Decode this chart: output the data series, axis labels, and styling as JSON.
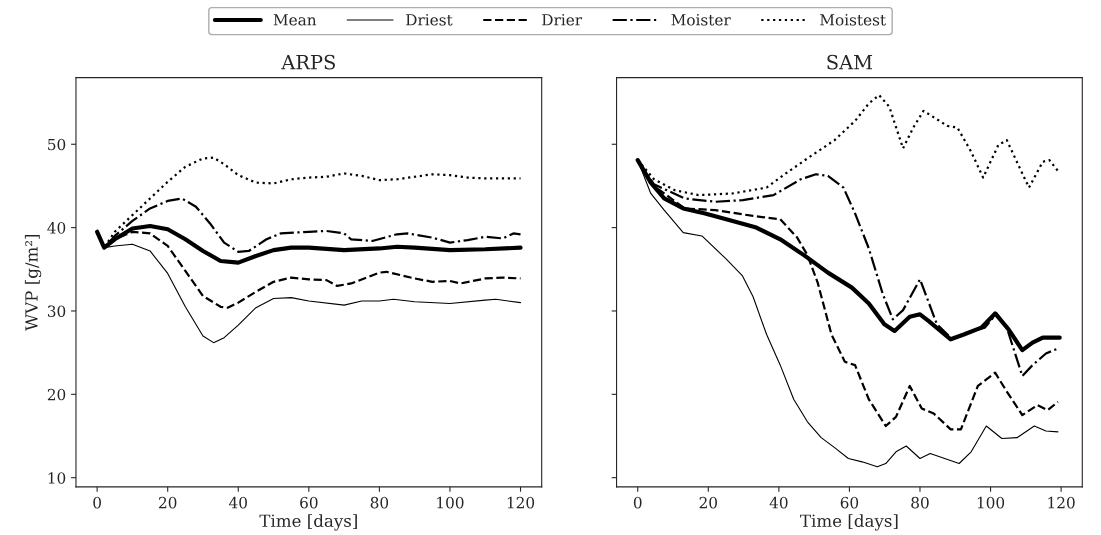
{
  "chart_data": [
    {
      "type": "line",
      "title": "ARPS",
      "xlabel": "Time [days]",
      "ylabel": "WVP [g/m²]",
      "xlim": [
        -6,
        126
      ],
      "ylim": [
        8.9,
        58
      ],
      "xticks": [
        0,
        20,
        40,
        60,
        80,
        100,
        120
      ],
      "yticks": [
        10,
        20,
        30,
        40,
        50
      ],
      "grid": false,
      "legend": "top",
      "marker": "none",
      "series": [
        {
          "name": "Mean",
          "color": "#000000",
          "line_style": "solid",
          "x": [
            0,
            2,
            5,
            10,
            15,
            20,
            25,
            30,
            35,
            40,
            45,
            50,
            55,
            60,
            70,
            80,
            85,
            90,
            100,
            110,
            120
          ],
          "values": [
            39.5,
            37.6,
            38.6,
            39.9,
            40.2,
            39.8,
            38.6,
            37.2,
            36.0,
            35.8,
            36.6,
            37.3,
            37.6,
            37.6,
            37.3,
            37.5,
            37.7,
            37.6,
            37.3,
            37.4,
            37.6
          ]
        },
        {
          "name": "Driest",
          "color": "#000000",
          "line_style": "solid",
          "x": [
            0,
            2,
            5,
            10,
            15,
            20,
            25,
            30,
            33,
            36,
            40,
            45,
            50,
            55,
            60,
            70,
            75,
            80,
            84,
            90,
            100,
            110,
            113,
            120
          ],
          "values": [
            39.4,
            37.6,
            37.8,
            38.0,
            37.2,
            34.5,
            30.5,
            27.0,
            26.2,
            26.8,
            28.3,
            30.4,
            31.5,
            31.6,
            31.2,
            30.7,
            31.2,
            31.2,
            31.4,
            31.1,
            30.9,
            31.3,
            31.4,
            31.0
          ]
        },
        {
          "name": "Drier",
          "color": "#000000",
          "line_style": "dashed",
          "x": [
            0,
            2,
            5,
            10,
            15,
            20,
            25,
            30,
            35,
            37,
            40,
            45,
            50,
            55,
            60,
            65,
            68,
            72,
            80,
            82,
            90,
            95,
            100,
            103,
            110,
            115,
            120
          ],
          "values": [
            39.4,
            37.6,
            38.6,
            39.5,
            39.3,
            37.8,
            34.8,
            31.8,
            30.5,
            30.4,
            31.0,
            32.3,
            33.5,
            34.0,
            33.8,
            33.7,
            33.0,
            33.3,
            34.6,
            34.7,
            33.9,
            33.5,
            33.6,
            33.3,
            33.9,
            34.0,
            33.9
          ]
        },
        {
          "name": "Moister",
          "color": "#000000",
          "line_style": "dashdot",
          "x": [
            0,
            2,
            5,
            10,
            15,
            20,
            24,
            28,
            32,
            36,
            40,
            43,
            48,
            52,
            60,
            65,
            70,
            72,
            78,
            85,
            88,
            95,
            100,
            105,
            110,
            115,
            118,
            120
          ],
          "values": [
            39.4,
            37.6,
            39.0,
            40.8,
            42.3,
            43.2,
            43.5,
            42.5,
            40.5,
            38.2,
            37.1,
            37.2,
            38.6,
            39.3,
            39.5,
            39.6,
            39.3,
            38.6,
            38.4,
            39.2,
            39.3,
            38.8,
            38.2,
            38.5,
            38.9,
            38.7,
            39.3,
            39.2
          ]
        },
        {
          "name": "Moistest",
          "color": "#000000",
          "line_style": "dotted",
          "x": [
            0,
            2,
            5,
            10,
            15,
            20,
            25,
            30,
            33,
            36,
            40,
            45,
            50,
            55,
            60,
            65,
            70,
            75,
            80,
            85,
            90,
            95,
            100,
            105,
            110,
            115,
            120
          ],
          "values": [
            39.4,
            37.6,
            39.5,
            41.5,
            43.5,
            45.5,
            47.3,
            48.3,
            48.4,
            47.6,
            46.3,
            45.4,
            45.3,
            45.8,
            46.0,
            46.1,
            46.5,
            46.2,
            45.7,
            45.8,
            46.1,
            46.4,
            46.3,
            46.0,
            45.9,
            45.9,
            45.9
          ]
        }
      ]
    },
    {
      "type": "line",
      "title": "SAM",
      "xlabel": "Time [days]",
      "xlim": [
        -6,
        126
      ],
      "ylim": [
        8.9,
        58
      ],
      "xticks": [
        0,
        20,
        40,
        60,
        80,
        100,
        120
      ],
      "yticks": [
        10,
        20,
        30,
        40,
        50
      ],
      "tick_labels": "x",
      "grid": false,
      "marker": "none",
      "series": [
        {
          "name": "Mean",
          "color": "#000000",
          "line_style": "solid",
          "x": [
            0,
            3.7,
            7.5,
            12.9,
            19.1,
            26.9,
            33.6,
            40.4,
            47.1,
            53.9,
            60.7,
            65.5,
            69.9,
            72.8,
            77.1,
            80,
            82.4,
            88.7,
            92.6,
            97.4,
            101.3,
            105.1,
            109,
            111.9,
            114.8,
            119.6
          ],
          "values": [
            48.1,
            45.4,
            43.5,
            42.3,
            41.7,
            40.8,
            40.0,
            38.6,
            36.7,
            34.6,
            32.8,
            30.9,
            28.4,
            27.6,
            29.3,
            29.6,
            28.8,
            26.6,
            27.2,
            28.0,
            29.7,
            27.8,
            25.3,
            26.2,
            26.8,
            26.8
          ]
        },
        {
          "name": "Driest",
          "color": "#000000",
          "line_style": "solid",
          "x": [
            0,
            3.7,
            7.5,
            12.9,
            18.2,
            24.9,
            29.7,
            32.7,
            36.5,
            40.4,
            44.2,
            48.1,
            52,
            55.8,
            59.7,
            63.6,
            67.9,
            70.3,
            73.2,
            76.1,
            80,
            82.9,
            91.1,
            94.5,
            98.8,
            103.2,
            107.5,
            112.4,
            115.7,
            119.1
          ],
          "values": [
            48.1,
            44.1,
            42.1,
            39.4,
            39.0,
            36.3,
            34.2,
            31.7,
            27.2,
            23.5,
            19.4,
            16.7,
            14.8,
            13.6,
            12.3,
            11.9,
            11.3,
            11.7,
            13.1,
            13.8,
            12.3,
            12.9,
            11.7,
            13.1,
            16.2,
            14.7,
            14.8,
            16.2,
            15.6,
            15.5
          ]
        },
        {
          "name": "Drier",
          "color": "#000000",
          "line_style": "dashed",
          "x": [
            0,
            4.6,
            13.3,
            22,
            32.7,
            40.4,
            45.2,
            48.1,
            51,
            54.9,
            58.7,
            61.6,
            65.5,
            70.3,
            73.2,
            77.1,
            80.5,
            83.9,
            88.7,
            91.6,
            96.4,
            101.3,
            104.2,
            109,
            113.3,
            116.2,
            119.1
          ],
          "values": [
            48.1,
            45.0,
            42.3,
            42.1,
            41.4,
            41.0,
            38.8,
            36.7,
            33.4,
            27.2,
            23.9,
            23.5,
            19.4,
            16.2,
            17.3,
            21.0,
            18.3,
            17.7,
            15.8,
            15.8,
            21.0,
            22.6,
            20.6,
            17.5,
            18.7,
            18.1,
            19.1
          ]
        },
        {
          "name": "Moister",
          "color": "#000000",
          "line_style": "dashdot",
          "x": [
            0,
            4.6,
            13.3,
            22,
            29.8,
            38.5,
            46.2,
            50.5,
            53.9,
            58.3,
            61.6,
            65.5,
            69.4,
            72.3,
            75.2,
            80,
            84.8,
            89.2,
            94.5,
            98.4,
            101.7,
            104.6,
            109,
            111.9,
            115.7,
            119.1
          ],
          "values": [
            48.1,
            45.2,
            43.5,
            43.1,
            43.3,
            43.9,
            45.8,
            46.4,
            46.2,
            44.8,
            41.7,
            37.5,
            32.1,
            29.0,
            30.1,
            33.8,
            28.4,
            26.6,
            27.6,
            28.0,
            29.7,
            28.0,
            22.2,
            23.5,
            24.9,
            25.5
          ]
        },
        {
          "name": "Moistest",
          "color": "#000000",
          "line_style": "dotted",
          "x": [
            0,
            4.6,
            10.4,
            17.2,
            26.9,
            36.5,
            42.3,
            48.1,
            55.8,
            61.6,
            65.5,
            68.4,
            71.3,
            75.2,
            78.1,
            81,
            84.8,
            87.7,
            90.6,
            94.5,
            97.9,
            102.2,
            104.6,
            108,
            110.9,
            114.8,
            116.7,
            119.1
          ],
          "values": [
            48.1,
            45.8,
            44.5,
            43.9,
            44.1,
            44.8,
            46.6,
            48.3,
            50.5,
            52.8,
            54.9,
            55.9,
            54.5,
            49.5,
            52.0,
            54.0,
            53.0,
            52.2,
            52.0,
            49.1,
            46.0,
            49.9,
            50.5,
            47.4,
            44.8,
            47.9,
            48.1,
            46.8
          ]
        }
      ]
    }
  ]
}
